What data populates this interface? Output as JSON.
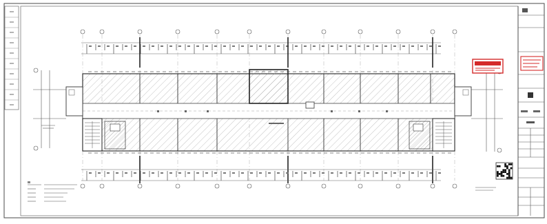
{
  "sheet": {
    "stamp_color": "#d42a2a",
    "line_color": "#3a3a3a",
    "hatch_color": "#8a8a8a",
    "grid_color": "#555555",
    "background": "#ffffff"
  }
}
